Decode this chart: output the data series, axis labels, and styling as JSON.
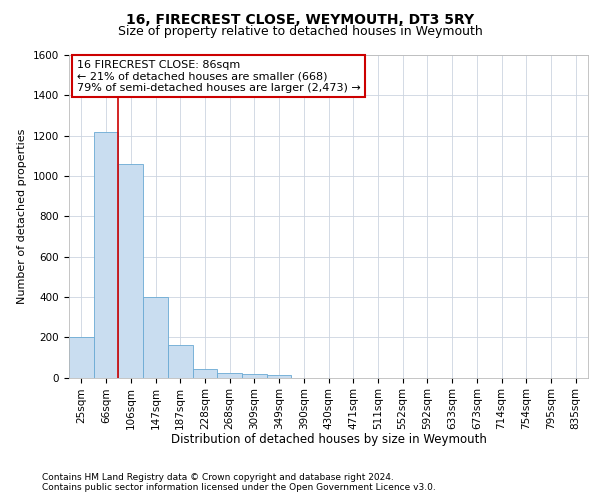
{
  "title1": "16, FIRECREST CLOSE, WEYMOUTH, DT3 5RY",
  "title2": "Size of property relative to detached houses in Weymouth",
  "xlabel": "Distribution of detached houses by size in Weymouth",
  "ylabel": "Number of detached properties",
  "categories": [
    "25sqm",
    "66sqm",
    "106sqm",
    "147sqm",
    "187sqm",
    "228sqm",
    "268sqm",
    "309sqm",
    "349sqm",
    "390sqm",
    "430sqm",
    "471sqm",
    "511sqm",
    "552sqm",
    "592sqm",
    "633sqm",
    "673sqm",
    "714sqm",
    "754sqm",
    "795sqm",
    "835sqm"
  ],
  "values": [
    200,
    1220,
    1060,
    400,
    160,
    40,
    20,
    15,
    10,
    0,
    0,
    0,
    0,
    0,
    0,
    0,
    0,
    0,
    0,
    0,
    0
  ],
  "bar_color": "#c9ddf0",
  "bar_edge_color": "#6aaad4",
  "property_line_x": 1.5,
  "property_line_color": "#cc0000",
  "annotation_line1": "16 FIRECREST CLOSE: 86sqm",
  "annotation_line2": "← 21% of detached houses are smaller (668)",
  "annotation_line3": "79% of semi-detached houses are larger (2,473) →",
  "annotation_box_color": "#cc0000",
  "ylim": [
    0,
    1600
  ],
  "yticks": [
    0,
    200,
    400,
    600,
    800,
    1000,
    1200,
    1400,
    1600
  ],
  "footer1": "Contains HM Land Registry data © Crown copyright and database right 2024.",
  "footer2": "Contains public sector information licensed under the Open Government Licence v3.0.",
  "bg_color": "#ffffff",
  "grid_color": "#ccd5e0",
  "title1_fontsize": 10,
  "title2_fontsize": 9,
  "xlabel_fontsize": 8.5,
  "ylabel_fontsize": 8,
  "tick_fontsize": 7.5,
  "annotation_fontsize": 8,
  "footer_fontsize": 6.5
}
